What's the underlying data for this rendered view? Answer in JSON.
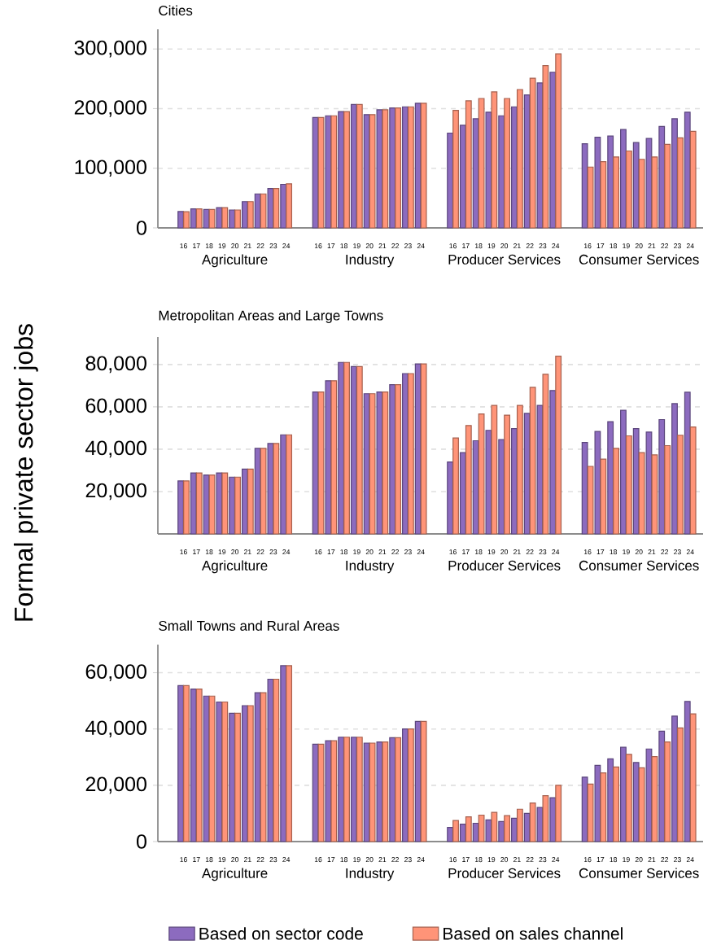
{
  "chart_data": [
    {
      "type": "bar",
      "title": "Cities",
      "categories": [
        "16",
        "17",
        "18",
        "19",
        "20",
        "21",
        "22",
        "23",
        "24",
        "16",
        "17",
        "18",
        "19",
        "20",
        "21",
        "22",
        "23",
        "24",
        "16",
        "17",
        "18",
        "19",
        "20",
        "21",
        "22",
        "23",
        "24",
        "16",
        "17",
        "18",
        "19",
        "20",
        "21",
        "22",
        "23",
        "24"
      ],
      "annotations": [
        "Agriculture",
        "Industry",
        "Producer Services",
        "Consumer Services"
      ],
      "series": [
        {
          "color": "#8c6bbf",
          "values": [
            27500,
            32000,
            31000,
            34000,
            30000,
            44000,
            57000,
            66000,
            73000,
            185000,
            188000,
            195000,
            207000,
            190000,
            198000,
            201000,
            203000,
            209000,
            159000,
            172000,
            183000,
            194000,
            188000,
            203000,
            223000,
            243000,
            261000,
            141000,
            152000,
            154000,
            165000,
            143000,
            150000,
            170000,
            183000,
            194000
          ]
        },
        {
          "color": "#ff9478",
          "values": [
            27000,
            32000,
            31000,
            34000,
            30000,
            44000,
            57000,
            66000,
            74000,
            185000,
            188000,
            195000,
            207000,
            190000,
            198000,
            201000,
            203000,
            209000,
            197000,
            213000,
            217000,
            228000,
            217000,
            232000,
            251000,
            272000,
            292000,
            102000,
            111000,
            119000,
            129000,
            115000,
            119000,
            140000,
            151000,
            162000
          ]
        }
      ],
      "ylim": [
        0,
        333000
      ],
      "yticks": [
        0,
        {
          "value": 100000,
          "label": "100,000"
        },
        {
          "value": 200000,
          "label": "200,000"
        },
        {
          "value": 300000,
          "label": "300,000"
        }
      ],
      "grid": "y"
    },
    {
      "type": "bar",
      "title": "Metropolitan Areas and Large Towns",
      "ylabel": "Formal private sector jobs",
      "categories": [
        "16",
        "17",
        "18",
        "19",
        "20",
        "21",
        "22",
        "23",
        "24",
        "16",
        "17",
        "18",
        "19",
        "20",
        "21",
        "22",
        "23",
        "24",
        "16",
        "17",
        "18",
        "19",
        "20",
        "21",
        "22",
        "23",
        "24",
        "16",
        "17",
        "18",
        "19",
        "20",
        "21",
        "22",
        "23",
        "24"
      ],
      "annotations": [
        "Agriculture",
        "Industry",
        "Producer Services",
        "Consumer Services"
      ],
      "series": [
        {
          "color": "#8c6bbf",
          "values": [
            25000,
            28800,
            27800,
            28800,
            26800,
            30600,
            40400,
            42700,
            46800,
            67000,
            72300,
            81000,
            79000,
            66200,
            67000,
            70500,
            75700,
            80300,
            34000,
            38400,
            44000,
            48900,
            44500,
            49700,
            56900,
            60700,
            67700,
            43200,
            48400,
            53000,
            58400,
            49700,
            48100,
            54000,
            61500,
            66900
          ]
        },
        {
          "color": "#ff9478",
          "values": [
            25000,
            28800,
            27800,
            28800,
            26800,
            30600,
            40400,
            42700,
            46800,
            67000,
            72300,
            81000,
            79000,
            66200,
            67000,
            70500,
            75700,
            80300,
            45300,
            51200,
            56600,
            60700,
            56100,
            60700,
            69200,
            75400,
            83900,
            31900,
            35300,
            40400,
            46300,
            38400,
            37300,
            41700,
            46600,
            50500
          ]
        }
      ],
      "ylim": [
        0,
        93000
      ],
      "yticks": [
        {
          "value": 20000,
          "label": "20,000"
        },
        {
          "value": 40000,
          "label": "40,000"
        },
        {
          "value": 60000,
          "label": "60,000"
        },
        {
          "value": 80000,
          "label": "80,000"
        }
      ],
      "grid": "y"
    },
    {
      "type": "bar",
      "title": "Small Towns and Rural Areas",
      "categories": [
        "16",
        "17",
        "18",
        "19",
        "20",
        "21",
        "22",
        "23",
        "24",
        "16",
        "17",
        "18",
        "19",
        "20",
        "21",
        "22",
        "23",
        "24",
        "16",
        "17",
        "18",
        "19",
        "20",
        "21",
        "22",
        "23",
        "24",
        "16",
        "17",
        "18",
        "19",
        "20",
        "21",
        "22",
        "23",
        "24"
      ],
      "annotations": [
        "Agriculture",
        "Industry",
        "Producer Services",
        "Consumer Services"
      ],
      "series": [
        {
          "name": "Based on sector code",
          "color": "#8c6bbf",
          "values": [
            55400,
            54200,
            51700,
            49600,
            45600,
            48300,
            52900,
            57700,
            62500,
            34600,
            35800,
            37100,
            37100,
            35000,
            35400,
            36900,
            40000,
            42700,
            5000,
            6200,
            6500,
            7700,
            7100,
            8300,
            10000,
            12100,
            15600,
            22900,
            27100,
            29400,
            33500,
            28100,
            32900,
            39200,
            44600,
            49800
          ]
        },
        {
          "name": "Based on sales channel",
          "color": "#ff9478",
          "values": [
            55400,
            54200,
            51700,
            49600,
            45600,
            48300,
            52900,
            57700,
            62500,
            34600,
            35800,
            37100,
            37100,
            35000,
            35400,
            36900,
            40000,
            42700,
            7500,
            8800,
            9400,
            10400,
            9200,
            11500,
            13700,
            16300,
            20000,
            20400,
            24400,
            26500,
            31000,
            26200,
            30200,
            35400,
            40400,
            45400
          ]
        }
      ],
      "ylim": [
        0,
        70000
      ],
      "yticks": [
        0,
        {
          "value": 20000,
          "label": "20,000"
        },
        {
          "value": 40000,
          "label": "40,000"
        },
        {
          "value": 60000,
          "label": "60,000"
        }
      ],
      "grid": "y",
      "legend": "bottom"
    }
  ]
}
